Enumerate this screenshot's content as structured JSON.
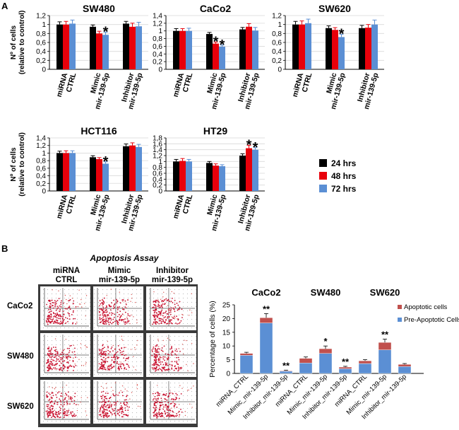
{
  "panel_labels": {
    "a": "A",
    "b": "B"
  },
  "legend_a": {
    "entries": [
      {
        "label": "24 hrs",
        "color": "#000000"
      },
      {
        "label": "48 hrs",
        "color": "#e8000b"
      },
      {
        "label": "72 hrs",
        "color": "#5b8fd4"
      }
    ]
  },
  "flow": {
    "title": "Apoptosis Assay",
    "col_headers": [
      [
        "miRNA",
        "CTRL"
      ],
      [
        "Mimic",
        "mir-139-5p"
      ],
      [
        "Inhibitor",
        "mir-139-5p"
      ]
    ],
    "row_labels": [
      "CaCo2",
      "SW480",
      "SW620"
    ]
  },
  "chart_data": [
    {
      "type": "bar",
      "title": "SW480",
      "ylabel": [
        "Nº of cells",
        "(relative to control)"
      ],
      "categories": [
        [
          "miRNA",
          "CTRL"
        ],
        [
          "Mimic",
          "mir-139-5p"
        ],
        [
          "Inhibitor",
          "mir-139-5p"
        ]
      ],
      "ylim": [
        0,
        1.2
      ],
      "yticks": [
        "0",
        "0,2",
        "0,4",
        "0,6",
        "0,8",
        "1",
        "1,2"
      ],
      "ystep": 0.2,
      "series": [
        {
          "name": "24 hrs",
          "values": [
            1.0,
            0.95,
            1.02
          ],
          "errors": [
            0.06,
            0.04,
            0.05
          ]
        },
        {
          "name": "48 hrs",
          "values": [
            1.0,
            0.8,
            0.95
          ],
          "errors": [
            0.07,
            0.05,
            0.08
          ]
        },
        {
          "name": "72 hrs",
          "values": [
            1.02,
            0.77,
            0.96
          ],
          "errors": [
            0.08,
            0.06,
            0.09
          ]
        }
      ],
      "significance": [
        {
          "category": 1,
          "series": 2,
          "label": "*"
        }
      ]
    },
    {
      "type": "bar",
      "title": "CaCo2",
      "ylabel": null,
      "categories": [
        [
          "miRNA",
          "CTRL"
        ],
        [
          "Mimic",
          "mir-139-5p"
        ],
        [
          "Inhibitor",
          "mir-139-5p"
        ]
      ],
      "ylim": [
        0,
        1.4
      ],
      "yticks": [
        "0",
        "0,2",
        "0,4",
        "0,6",
        "0,8",
        "1",
        "1,2",
        "1,4"
      ],
      "ystep": 0.2,
      "series": [
        {
          "name": "24 hrs",
          "values": [
            1.0,
            0.92,
            1.04
          ],
          "errors": [
            0.06,
            0.04,
            0.05
          ]
        },
        {
          "name": "48 hrs",
          "values": [
            1.0,
            0.67,
            1.11
          ],
          "errors": [
            0.06,
            0.04,
            0.08
          ]
        },
        {
          "name": "72 hrs",
          "values": [
            1.0,
            0.59,
            1.01
          ],
          "errors": [
            0.07,
            0.04,
            0.08
          ]
        }
      ],
      "significance": [
        {
          "category": 1,
          "series": 1,
          "label": "*"
        },
        {
          "category": 1,
          "series": 2,
          "label": "*"
        }
      ]
    },
    {
      "type": "bar",
      "title": "SW620",
      "ylabel": null,
      "categories": [
        [
          "miRNA",
          "CTRL"
        ],
        [
          "Mimic",
          "mir-139-5p"
        ],
        [
          "Inhibitor",
          "mir-139-5p"
        ]
      ],
      "ylim": [
        0,
        1.2
      ],
      "yticks": [
        "0",
        "0,2",
        "0,4",
        "0,6",
        "0,8",
        "1",
        "1,2"
      ],
      "ystep": 0.2,
      "series": [
        {
          "name": "24 hrs",
          "values": [
            1.0,
            0.92,
            0.92
          ],
          "errors": [
            0.07,
            0.05,
            0.06
          ]
        },
        {
          "name": "48 hrs",
          "values": [
            1.0,
            0.88,
            0.93
          ],
          "errors": [
            0.08,
            0.05,
            0.07
          ]
        },
        {
          "name": "72 hrs",
          "values": [
            1.03,
            0.72,
            1.0
          ],
          "errors": [
            0.09,
            0.06,
            0.1
          ]
        }
      ],
      "significance": [
        {
          "category": 1,
          "series": 2,
          "label": "*"
        }
      ]
    },
    {
      "type": "bar",
      "title": "HCT116",
      "ylabel": [
        "Nº of cells",
        "(relative to control)"
      ],
      "categories": [
        [
          "miRNA",
          "CTRL"
        ],
        [
          "Mimic",
          "mir-139-5p"
        ],
        [
          "Inhibitor",
          "mir-139-5p"
        ]
      ],
      "ylim": [
        0,
        1.4
      ],
      "yticks": [
        "0",
        "0,2",
        "0,4",
        "0,6",
        "0,8",
        "1",
        "1,2",
        "1,4"
      ],
      "ystep": 0.2,
      "series": [
        {
          "name": "24 hrs",
          "values": [
            1.0,
            0.89,
            1.18
          ],
          "errors": [
            0.05,
            0.04,
            0.06
          ]
        },
        {
          "name": "48 hrs",
          "values": [
            1.0,
            0.84,
            1.2
          ],
          "errors": [
            0.06,
            0.04,
            0.07
          ]
        },
        {
          "name": "72 hrs",
          "values": [
            1.0,
            0.72,
            1.16
          ],
          "errors": [
            0.06,
            0.05,
            0.07
          ]
        }
      ],
      "significance": [
        {
          "category": 1,
          "series": 2,
          "label": "*"
        }
      ]
    },
    {
      "type": "bar",
      "title": "HT29",
      "ylabel": null,
      "categories": [
        [
          "miRNA",
          "CTRL"
        ],
        [
          "Mimic",
          "mir-139-5p"
        ],
        [
          "Inhibitor",
          "mir-139-5p"
        ]
      ],
      "ylim": [
        0,
        1.8
      ],
      "yticks": [
        "0",
        "0,2",
        "0,4",
        "0,6",
        "0,8",
        "1",
        "1,2",
        "1,4",
        "1,6",
        "1,8"
      ],
      "ystep": 0.2,
      "series": [
        {
          "name": "24 hrs",
          "values": [
            1.0,
            0.95,
            1.2
          ],
          "errors": [
            0.07,
            0.05,
            0.06
          ]
        },
        {
          "name": "48 hrs",
          "values": [
            1.02,
            0.86,
            1.45
          ],
          "errors": [
            0.08,
            0.06,
            0.1
          ]
        },
        {
          "name": "72 hrs",
          "values": [
            1.0,
            0.84,
            1.4
          ],
          "errors": [
            0.07,
            0.05,
            0.07
          ]
        }
      ],
      "significance": [
        {
          "category": 2,
          "series": 1,
          "label": "*"
        },
        {
          "category": 2,
          "series": 2,
          "label": "*"
        }
      ]
    },
    {
      "type": "bar",
      "stacked": true,
      "ylabel": "Percentage of cells (%)",
      "ylim": [
        0,
        25
      ],
      "yticks": [
        "0",
        "5",
        "10",
        "15",
        "20",
        "25"
      ],
      "ystep": 5,
      "groups": [
        {
          "title": "CaCo2",
          "categories": [
            "miRNA_CTRL",
            "Mimic_mir-139-5p",
            "Inhibitor_mir-139-5p"
          ]
        },
        {
          "title": "SW480",
          "categories": [
            "miRNA_CTRL",
            "Mimic_mir-139-5p",
            "Inhibitor_mir-139-5p"
          ]
        },
        {
          "title": "SW620",
          "categories": [
            "miRNA_CTRL",
            "Mimic_mir-139-5p",
            "Inhibitor_mir-139-5p"
          ]
        }
      ],
      "series": [
        {
          "name": "Pre-Apoptotic Cells",
          "color": "#5b8fd4",
          "values": [
            [
              6.6,
              18.4,
              0.8
            ],
            [
              3.8,
              7.3,
              1.7
            ],
            [
              3.6,
              8.6,
              2.5
            ]
          ]
        },
        {
          "name": "Apoptotic cells",
          "color": "#c0504d",
          "values": [
            [
              0.7,
              1.9,
              0.2
            ],
            [
              1.7,
              1.7,
              0.6
            ],
            [
              1.0,
              2.7,
              0.8
            ]
          ]
        }
      ],
      "errors": [
        [
          0.4,
          1.5,
          0.2
        ],
        [
          0.5,
          1.0,
          0.3
        ],
        [
          0.4,
          1.2,
          0.3
        ]
      ],
      "significance": [
        {
          "group": 0,
          "category": 1,
          "label": "**"
        },
        {
          "group": 0,
          "category": 2,
          "label": "**"
        },
        {
          "group": 1,
          "category": 1,
          "label": "*"
        },
        {
          "group": 1,
          "category": 2,
          "label": "**"
        },
        {
          "group": 2,
          "category": 1,
          "label": "**"
        }
      ],
      "legend": [
        "Apoptotic cells",
        "Pre-Apoptotic Cells"
      ]
    }
  ]
}
